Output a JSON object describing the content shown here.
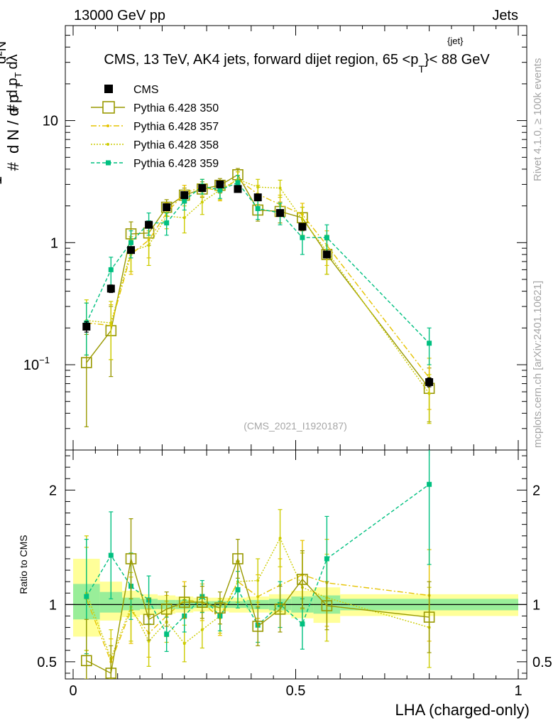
{
  "header": {
    "left": "13000 GeV pp",
    "right": "Jets",
    "title_main": "CMS, 13 TeV, AK4 jets, forward dijet region, 65 <p",
    "title_sup": "{jet}",
    "title_sub": "T",
    "title_end": "}< 88 GeV",
    "rivet": "Rivet 4.1.0, ≥ 100k events",
    "mcplots": "mcplots.cern.ch [arXiv:2401.10621]",
    "analysis": "(CMS_2021_I1920187)"
  },
  "chart_data": [
    {
      "type": "scatter",
      "name": "main",
      "yscale": "log",
      "ylim": [
        0.02,
        60
      ],
      "xlim": [
        0,
        1
      ],
      "ylabel": "1 / (dN/dpT) d²N / (dpT dλ)",
      "yticks": [
        {
          "value": 0.1,
          "label": "10",
          "sup": "−1"
        },
        {
          "value": 1,
          "label": "1",
          "sup": ""
        },
        {
          "value": 10,
          "label": "10",
          "sup": ""
        }
      ],
      "x": [
        0.03,
        0.085,
        0.13,
        0.17,
        0.21,
        0.25,
        0.29,
        0.33,
        0.37,
        0.415,
        0.465,
        0.515,
        0.57,
        0.8
      ],
      "bin_edges": [
        0,
        0.06,
        0.11,
        0.15,
        0.19,
        0.23,
        0.27,
        0.31,
        0.35,
        0.39,
        0.44,
        0.49,
        0.54,
        0.6,
        1.0
      ],
      "series": [
        {
          "name": "CMS",
          "color": "#000000",
          "marker": "filled-square",
          "dash": "",
          "values": [
            0.205,
            0.42,
            0.87,
            1.4,
            1.95,
            2.45,
            2.8,
            3.0,
            2.75,
            2.35,
            1.75,
            1.35,
            0.8,
            0.072
          ],
          "err": [
            0.02,
            0.03,
            0.05,
            0.07,
            0.08,
            0.08,
            0.08,
            0.08,
            0.08,
            0.08,
            0.07,
            0.07,
            0.05,
            0.006
          ]
        },
        {
          "name": "Pythia 6.428 350",
          "color": "#999900",
          "marker": "open-square",
          "dash": "",
          "values": [
            0.104,
            0.19,
            1.18,
            1.2,
            1.95,
            2.45,
            2.75,
            2.95,
            3.6,
            1.85,
            1.8,
            1.6,
            0.8,
            0.064
          ],
          "err": [
            0.073,
            0.11,
            0.3,
            0.25,
            0.3,
            0.35,
            0.4,
            0.4,
            0.45,
            0.35,
            0.35,
            0.35,
            0.25,
            0.03
          ]
        },
        {
          "name": "Pythia 6.428 357",
          "color": "#e6c300",
          "marker": "small",
          "dash": "8 3 2 3",
          "values": [
            0.22,
            0.21,
            0.8,
            1.05,
            1.75,
            2.55,
            2.85,
            2.65,
            3.3,
            2.5,
            2.05,
            1.7,
            0.95,
            0.078
          ],
          "err": [
            0.1,
            0.1,
            0.25,
            0.3,
            0.35,
            0.4,
            0.45,
            0.45,
            0.5,
            0.45,
            0.4,
            0.4,
            0.3,
            0.035
          ]
        },
        {
          "name": "Pythia 6.428 358",
          "color": "#cccc00",
          "marker": "small",
          "dash": "2 2",
          "values": [
            0.23,
            0.22,
            0.85,
            0.95,
            1.65,
            1.6,
            2.15,
            2.7,
            3.3,
            2.85,
            2.8,
            1.55,
            0.85,
            0.058
          ],
          "err": [
            0.11,
            0.11,
            0.27,
            0.3,
            0.35,
            0.4,
            0.45,
            0.45,
            0.5,
            0.45,
            0.45,
            0.4,
            0.3,
            0.025
          ]
        },
        {
          "name": "Pythia 6.428 359",
          "color": "#00c080",
          "marker": "small-square",
          "dash": "5 3",
          "values": [
            0.22,
            0.6,
            1.0,
            1.45,
            1.45,
            2.2,
            2.9,
            2.7,
            3.1,
            1.9,
            1.75,
            1.1,
            1.1,
            0.15
          ],
          "err": [
            0.1,
            0.16,
            0.25,
            0.3,
            0.3,
            0.35,
            0.4,
            0.4,
            0.45,
            0.35,
            0.35,
            0.3,
            0.3,
            0.05
          ]
        }
      ]
    },
    {
      "type": "scatter",
      "name": "ratio",
      "ylim": [
        0.35,
        2.35
      ],
      "xlim": [
        0,
        1
      ],
      "ylabel": "Ratio to CMS",
      "xlabel": "LHA (charged-only)",
      "xticks": [
        {
          "value": 0,
          "label": "0"
        },
        {
          "value": 0.5,
          "label": "0.5"
        },
        {
          "value": 1,
          "label": "1"
        }
      ],
      "yticks": [
        {
          "value": 0.5,
          "label": "0.5"
        },
        {
          "value": 1,
          "label": "1"
        },
        {
          "value": 2,
          "label": "2"
        }
      ],
      "band_yellow": [
        [
          0.72,
          1.4
        ],
        [
          0.86,
          1.2
        ],
        [
          0.89,
          1.12
        ],
        [
          0.91,
          1.09
        ],
        [
          0.92,
          1.08
        ],
        [
          0.93,
          1.07
        ],
        [
          0.94,
          1.06
        ],
        [
          0.94,
          1.06
        ],
        [
          0.93,
          1.06
        ],
        [
          0.93,
          1.07
        ],
        [
          0.91,
          1.09
        ],
        [
          0.88,
          1.12
        ],
        [
          0.84,
          1.15
        ],
        [
          0.9,
          1.09
        ]
      ],
      "band_green": [
        [
          0.87,
          1.18
        ],
        [
          0.93,
          1.11
        ],
        [
          0.95,
          1.06
        ],
        [
          0.96,
          1.05
        ],
        [
          0.96,
          1.04
        ],
        [
          0.96,
          1.04
        ],
        [
          0.97,
          1.03
        ],
        [
          0.97,
          1.03
        ],
        [
          0.97,
          1.03
        ],
        [
          0.96,
          1.04
        ],
        [
          0.95,
          1.05
        ],
        [
          0.93,
          1.07
        ],
        [
          0.92,
          1.08
        ],
        [
          0.95,
          1.05
        ]
      ],
      "series": [
        {
          "name": "Pythia 6.428 350",
          "color": "#999900",
          "marker": "open-square",
          "dash": "",
          "values": [
            0.51,
            0.4,
            1.4,
            0.87,
            0.96,
            1.02,
            1.02,
            0.97,
            1.4,
            0.81,
            0.96,
            1.22,
            0.99,
            0.89
          ],
          "err": [
            0.36,
            0.24,
            0.35,
            0.18,
            0.15,
            0.14,
            0.14,
            0.14,
            0.17,
            0.17,
            0.2,
            0.25,
            0.21,
            0.31
          ]
        },
        {
          "name": "Pythia 6.428 357",
          "color": "#e6c300",
          "marker": "small",
          "dash": "8 3 2 3",
          "values": [
            1.05,
            0.5,
            0.95,
            0.75,
            0.9,
            1.04,
            1.02,
            0.88,
            1.2,
            1.07,
            1.17,
            1.26,
            1.19,
            1.08
          ],
          "err": [
            0.45,
            0.2,
            0.29,
            0.21,
            0.18,
            0.16,
            0.16,
            0.15,
            0.18,
            0.19,
            0.23,
            0.3,
            0.38,
            0.4
          ]
        },
        {
          "name": "Pythia 6.428 358",
          "color": "#cccc00",
          "marker": "small",
          "dash": "2 2",
          "values": [
            1.1,
            0.53,
            0.98,
            0.68,
            0.85,
            0.66,
            0.78,
            0.9,
            1.2,
            1.21,
            1.58,
            1.15,
            1.06,
            0.8
          ],
          "err": [
            0.5,
            0.25,
            0.3,
            0.22,
            0.18,
            0.16,
            0.16,
            0.15,
            0.18,
            0.19,
            0.25,
            0.3,
            0.38,
            0.35
          ]
        },
        {
          "name": "Pythia 6.428 359",
          "color": "#00c080",
          "marker": "small-square",
          "dash": "5 3",
          "values": [
            1.07,
            1.43,
            1.16,
            1.04,
            0.74,
            0.9,
            1.07,
            0.9,
            1.13,
            0.82,
            1.0,
            0.83,
            1.4,
            2.05
          ],
          "err": [
            0.5,
            0.38,
            0.29,
            0.21,
            0.15,
            0.14,
            0.14,
            0.13,
            0.16,
            0.15,
            0.2,
            0.22,
            0.37,
            0.7
          ]
        }
      ]
    }
  ]
}
